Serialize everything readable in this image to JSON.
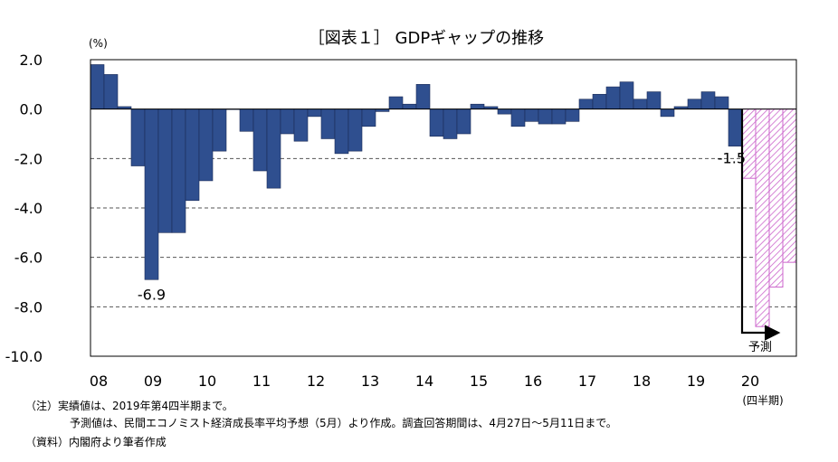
{
  "chart_data": {
    "type": "bar",
    "title": "［図表１］ GDPギャップの推移",
    "ylabel": "(%)",
    "ylim": [
      -10,
      2
    ],
    "yticks": [
      2,
      0,
      -2,
      -4,
      -6,
      -8,
      -10
    ],
    "ytick_labels": [
      "2.0",
      "0.0",
      "-2.0",
      "-4.0",
      "-6.0",
      "-8.0",
      "-10.0"
    ],
    "year_labels": [
      "08",
      "09",
      "10",
      "11",
      "12",
      "13",
      "14",
      "15",
      "16",
      "17",
      "18",
      "19",
      "20"
    ],
    "period_unit": "(四半期)",
    "grid": "dashed horizontal",
    "colors": {
      "actual": "#2f4f8f",
      "forecast_hatch": "#cc66cc",
      "grid": "#555555"
    },
    "series": [
      {
        "name": "実績値",
        "start": "2008Q1",
        "values": [
          1.8,
          1.4,
          0.1,
          -2.3,
          -6.9,
          -5.0,
          -5.0,
          -3.7,
          -2.9,
          -1.7,
          0.0,
          -0.9,
          -2.5,
          -3.2,
          -1.0,
          -1.3,
          -0.3,
          -1.2,
          -1.8,
          -1.7,
          -0.7,
          -0.1,
          0.5,
          0.2,
          1.0,
          -1.1,
          -1.2,
          -1.0,
          0.2,
          0.1,
          -0.2,
          -0.7,
          -0.5,
          -0.6,
          -0.6,
          -0.5,
          0.4,
          0.6,
          0.9,
          1.1,
          0.4,
          0.7,
          -0.3,
          0.1,
          0.4,
          0.7,
          0.5,
          -1.5
        ]
      },
      {
        "name": "予測値",
        "start": "2020Q1",
        "values": [
          -2.8,
          -8.8,
          -7.2,
          -6.2
        ]
      }
    ],
    "annotations": [
      "-6.9",
      "-1.5",
      "予測"
    ]
  },
  "notes": {
    "line1": "（注）実績値は、2019年第4四半期まで。",
    "line2": "予測値は、民間エコノミスト経済成長率平均予想（5月）より作成。調査回答期間は、4月27日～5月11日まで。",
    "line3": "（資料）内閣府より筆者作成"
  }
}
